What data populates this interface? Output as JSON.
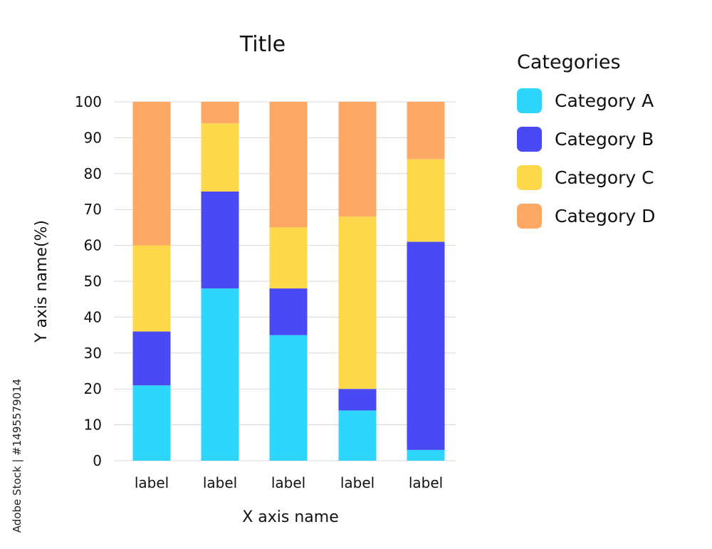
{
  "chart_data": {
    "type": "bar",
    "stacked": true,
    "title": "Title",
    "xlabel": "X axis name",
    "ylabel": "Y axis name(%)",
    "categories": [
      "label",
      "label",
      "label",
      "label",
      "label"
    ],
    "series": [
      {
        "name": "Category A",
        "color": "#2ED5FD",
        "values": [
          21,
          48,
          35,
          14,
          3
        ]
      },
      {
        "name": "Category B",
        "color": "#4A4AF5",
        "values": [
          15,
          27,
          13,
          6,
          58
        ]
      },
      {
        "name": "Category C",
        "color": "#FDD84A",
        "values": [
          24,
          19,
          17,
          48,
          23
        ]
      },
      {
        "name": "Category D",
        "color": "#FDA865",
        "values": [
          40,
          6,
          35,
          32,
          16
        ]
      }
    ],
    "ylim": [
      0,
      100
    ],
    "yticks": [
      0,
      10,
      20,
      30,
      40,
      50,
      60,
      70,
      80,
      90,
      100
    ],
    "grid": true,
    "legend": {
      "title": "Categories",
      "position": "right"
    }
  },
  "watermark": "Adobe Stock | #1495579014"
}
